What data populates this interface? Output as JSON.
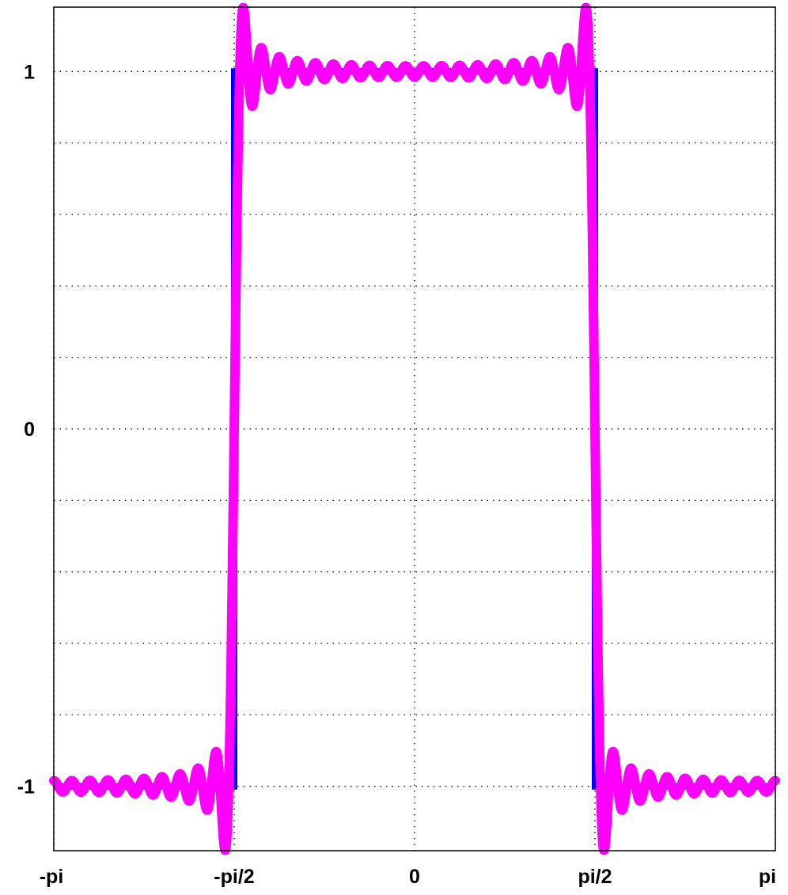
{
  "chart_data": {
    "type": "line",
    "title": "",
    "xlabel": "",
    "ylabel": "",
    "xlim": [
      -3.14159,
      3.14159
    ],
    "ylim": [
      -1.18,
      1.18
    ],
    "grid": true,
    "x_ticks": [
      {
        "value": -3.14159,
        "label": "-pi"
      },
      {
        "value": -1.5708,
        "label": "-pi/2"
      },
      {
        "value": 0,
        "label": "0"
      },
      {
        "value": 1.5708,
        "label": "pi/2"
      },
      {
        "value": 3.14159,
        "label": "pi"
      }
    ],
    "y_ticks": [
      {
        "value": -1,
        "label": "-1"
      },
      {
        "value": -0.8,
        "label": ""
      },
      {
        "value": -0.6,
        "label": ""
      },
      {
        "value": -0.4,
        "label": ""
      },
      {
        "value": -0.2,
        "label": ""
      },
      {
        "value": 0,
        "label": "0"
      },
      {
        "value": 0.2,
        "label": ""
      },
      {
        "value": 0.4,
        "label": ""
      },
      {
        "value": 0.6,
        "label": ""
      },
      {
        "value": 0.8,
        "label": ""
      },
      {
        "value": 1,
        "label": "1"
      }
    ],
    "series": [
      {
        "color": "#0000ff",
        "style": "square wave",
        "x": [
          -3.14159,
          -1.5708,
          -1.5708,
          1.5708,
          1.5708,
          3.14159
        ],
        "y": [
          -1,
          -1,
          1,
          1,
          -1,
          -1
        ]
      },
      {
        "color": "#ff00ff",
        "style": "Fourier partial sum, odd cosine harmonics up to order 39",
        "max_harmonic": 39
      }
    ]
  }
}
